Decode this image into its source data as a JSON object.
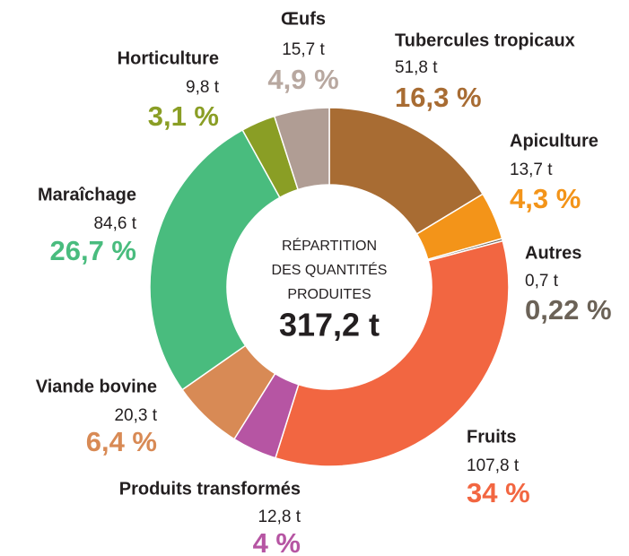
{
  "chart_data": {
    "type": "donut",
    "center_title": [
      "RÉPARTITION",
      "DES QUANTITÉS",
      "PRODUITES"
    ],
    "total_label": "317,2 t",
    "categories": [
      "Tubercules tropicaux",
      "Apiculture",
      "Autres",
      "Fruits",
      "Produits transformés",
      "Viande bovine",
      "Maraîchage",
      "Horticulture",
      "Œufs"
    ],
    "values": [
      51.8,
      13.7,
      0.7,
      107.8,
      12.8,
      20.3,
      84.6,
      9.8,
      15.7
    ],
    "value_labels": [
      "51,8 t",
      "13,7 t",
      "0,7 t",
      "107,8 t",
      "12,8 t",
      "20,3 t",
      "84,6 t",
      "9,8 t",
      "15,7 t"
    ],
    "percents": [
      16.3,
      4.3,
      0.22,
      34,
      4,
      6.4,
      26.7,
      3.1,
      4.9
    ],
    "percent_labels": [
      "16,3 %",
      "4,3 %",
      "0,22 %",
      "34 %",
      "4 %",
      "6,4 %",
      "26,7 %",
      "3,1 %",
      "4,9 %"
    ],
    "colors": [
      "#a86c33",
      "#f39419",
      "#6b6257",
      "#f26641",
      "#b655a3",
      "#d88a55",
      "#49bc7e",
      "#8a9e25",
      "#b09d94"
    ],
    "percent_colors": [
      "#a86c33",
      "#f39419",
      "#6b6257",
      "#f26641",
      "#b655a3",
      "#d88a55",
      "#49bc7e",
      "#8a9e25",
      "#b8a8a0"
    ]
  }
}
